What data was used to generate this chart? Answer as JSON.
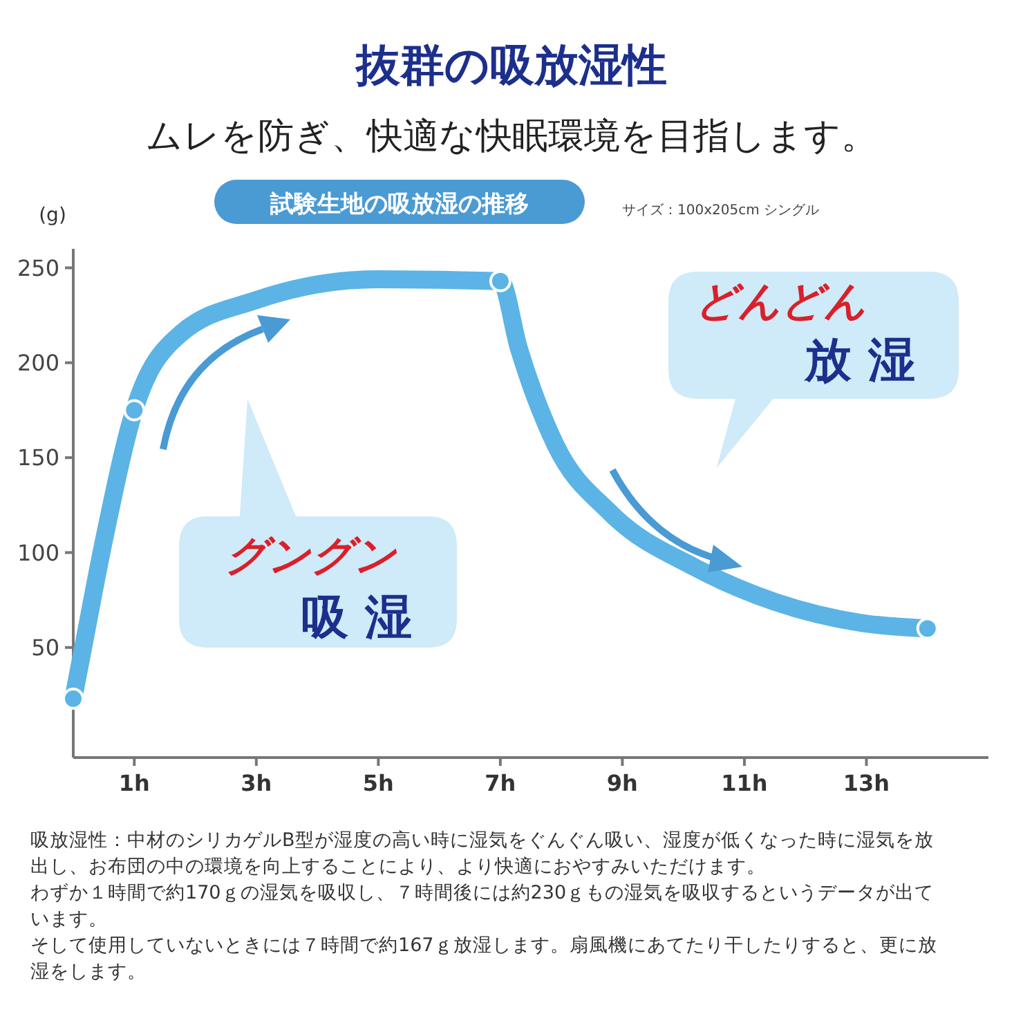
{
  "chart_data": {
    "type": "line",
    "title": "抜群の吸放湿性",
    "subtitle": "ムレを防ぎ、快適な快眠環境を目指します。",
    "ylabel": "(g)",
    "xlim": [
      0,
      15
    ],
    "ylim": [
      -8,
      260
    ],
    "xticks": [
      {
        "value": 1,
        "label": "1h"
      },
      {
        "value": 3,
        "label": "3h"
      },
      {
        "value": 5,
        "label": "5h"
      },
      {
        "value": 7,
        "label": "7h"
      },
      {
        "value": 9,
        "label": "9h"
      },
      {
        "value": 11,
        "label": "11h"
      },
      {
        "value": 13,
        "label": "13h"
      }
    ],
    "yticks": [
      50,
      100,
      150,
      200,
      250
    ],
    "grid": false,
    "series": [
      {
        "color": "#5bb4e5",
        "marker": "none",
        "x": [
          0,
          0.15,
          0.5,
          1,
          1.75,
          3,
          5,
          7,
          7.3,
          7.9,
          8.8,
          10.2,
          11.5,
          12.9,
          14
        ],
        "values": [
          23,
          48,
          106,
          175,
          215,
          233,
          244,
          243,
          208,
          157,
          121,
          92,
          74,
          63,
          60
        ]
      },
      {
        "type": "scatter",
        "color": "#5bb4e5",
        "marker": "circle",
        "x": [
          0,
          1,
          7,
          14
        ],
        "values": [
          23,
          175,
          243,
          60
        ]
      }
    ],
    "annotations": [
      "試験生地の吸放湿の推移",
      "サイズ：100x205cm シングル",
      "グングン",
      "吸 湿",
      "どんどん",
      "放 湿",
      "吸放湿性：中材のシリカゲルB型が湿度の高い時に湿気をぐんぐん吸い、湿度が低くなった時に湿気を放出し、お布団の中の環境を向上することにより、より快適におやすみいただけます。",
      "わずか１時間で約170ｇの湿気を吸収し、７時間後には約230ｇもの湿気を吸収するというデータが出ています。",
      "そして使用していないときには７時間で約167ｇ放湿します。扇風機にあてたり干したりすると、更に放湿をします。"
    ]
  }
}
